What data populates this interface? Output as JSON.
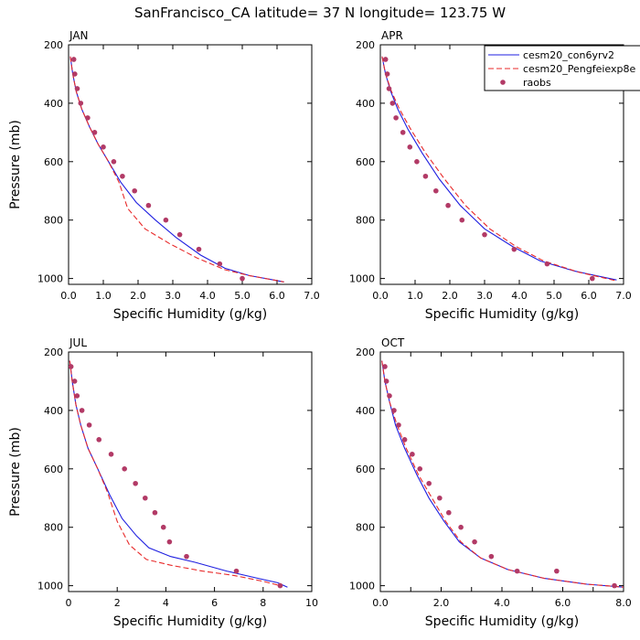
{
  "title": "SanFrancisco_CA  latitude= 37 N longitude= 123.75 W",
  "colors": {
    "model_a": "#1f1fe0",
    "model_b": "#e82a2a",
    "obs": "#b23a66"
  },
  "chart_data": [
    {
      "type": "line",
      "panel": "JAN",
      "title": "JAN",
      "xlabel": "Specific Humidity (g/kg)",
      "ylabel": "Pressure (mb)",
      "xlim": [
        0,
        7
      ],
      "ylim": [
        200,
        1020
      ],
      "y_inverted": true,
      "xticks": [
        0,
        1,
        2,
        3,
        4,
        5,
        6,
        7
      ],
      "xtick_labels": [
        "0.0",
        "1.0",
        "2.0",
        "3.0",
        "4.0",
        "5.0",
        "6.0",
        "7.0"
      ],
      "yticks": [
        200,
        400,
        600,
        800,
        1000
      ],
      "ytick_labels": [
        "200",
        "400",
        "600",
        "800",
        "1000"
      ],
      "series": [
        {
          "name": "cesm20_con6yrv2",
          "style": "solid",
          "x": [
            0.05,
            0.12,
            0.22,
            0.38,
            0.6,
            0.85,
            1.15,
            1.5,
            1.95,
            2.5,
            3.1,
            3.8,
            4.5,
            5.2,
            5.9,
            6.2
          ],
          "y": [
            240,
            300,
            360,
            420,
            480,
            540,
            600,
            670,
            740,
            800,
            860,
            920,
            965,
            990,
            1005,
            1012
          ]
        },
        {
          "name": "cesm20_Pengfeiexp8e",
          "style": "dashed",
          "x": [
            0.05,
            0.12,
            0.22,
            0.38,
            0.6,
            0.85,
            1.15,
            1.45,
            1.7,
            2.2,
            2.9,
            3.7,
            4.5,
            5.2,
            5.9,
            6.2
          ],
          "y": [
            240,
            300,
            360,
            420,
            480,
            540,
            600,
            670,
            760,
            830,
            880,
            930,
            970,
            990,
            1005,
            1012
          ]
        },
        {
          "name": "raobs",
          "style": "markers",
          "x": [
            0.15,
            0.18,
            0.25,
            0.35,
            0.55,
            0.75,
            1.0,
            1.3,
            1.55,
            1.9,
            2.3,
            2.8,
            3.2,
            3.75,
            4.35,
            5.0
          ],
          "y": [
            250,
            300,
            350,
            400,
            450,
            500,
            550,
            600,
            650,
            700,
            750,
            800,
            850,
            900,
            950,
            1000
          ]
        }
      ]
    },
    {
      "type": "line",
      "panel": "APR",
      "title": "APR",
      "xlabel": "Specific Humidity (g/kg)",
      "ylabel": "",
      "xlim": [
        0,
        7
      ],
      "ylim": [
        200,
        1020
      ],
      "y_inverted": true,
      "xticks": [
        0,
        1,
        2,
        3,
        4,
        5,
        6,
        7
      ],
      "xtick_labels": [
        "0.0",
        "1.0",
        "2.0",
        "3.0",
        "4.0",
        "5.0",
        "6.0",
        "7.0"
      ],
      "yticks": [
        200,
        400,
        600,
        800,
        1000
      ],
      "ytick_labels": [
        "200",
        "400",
        "600",
        "800",
        "1000"
      ],
      "series": [
        {
          "name": "cesm20_con6yrv2",
          "style": "solid",
          "x": [
            0.05,
            0.15,
            0.3,
            0.5,
            0.8,
            1.2,
            1.7,
            2.3,
            3.0,
            3.8,
            4.6,
            5.6,
            6.8
          ],
          "y": [
            240,
            300,
            360,
            420,
            490,
            570,
            660,
            750,
            830,
            890,
            940,
            975,
            1005
          ]
        },
        {
          "name": "cesm20_Pengfeiexp8e",
          "style": "dashed",
          "x": [
            0.05,
            0.15,
            0.32,
            0.55,
            0.88,
            1.3,
            1.85,
            2.45,
            3.15,
            3.9,
            4.7,
            5.7,
            6.8
          ],
          "y": [
            240,
            300,
            360,
            420,
            490,
            570,
            660,
            750,
            830,
            890,
            940,
            978,
            1008
          ]
        },
        {
          "name": "raobs",
          "style": "markers",
          "x": [
            0.15,
            0.2,
            0.25,
            0.35,
            0.45,
            0.65,
            0.85,
            1.05,
            1.3,
            1.6,
            1.95,
            2.35,
            3.0,
            3.85,
            4.8,
            6.1
          ],
          "y": [
            250,
            300,
            350,
            400,
            450,
            500,
            550,
            600,
            650,
            700,
            750,
            800,
            850,
            900,
            950,
            1000
          ]
        }
      ]
    },
    {
      "type": "line",
      "panel": "JUL",
      "title": "JUL",
      "xlabel": "Specific Humidity (g/kg)",
      "ylabel": "Pressure (mb)",
      "xlim": [
        0,
        10
      ],
      "ylim": [
        200,
        1020
      ],
      "y_inverted": true,
      "xticks": [
        0,
        2,
        4,
        6,
        8,
        10
      ],
      "xtick_labels": [
        "0",
        "2",
        "4",
        "6",
        "8",
        "10"
      ],
      "yticks": [
        200,
        400,
        600,
        800,
        1000
      ],
      "ytick_labels": [
        "200",
        "400",
        "600",
        "800",
        "1000"
      ],
      "series": [
        {
          "name": "cesm20_con6yrv2",
          "style": "solid",
          "x": [
            0.05,
            0.15,
            0.3,
            0.5,
            0.8,
            1.2,
            1.7,
            2.2,
            2.8,
            3.3,
            4.2,
            5.2,
            6.5,
            7.8,
            8.6,
            9.0
          ],
          "y": [
            230,
            300,
            380,
            450,
            530,
            600,
            690,
            770,
            830,
            870,
            900,
            920,
            950,
            975,
            990,
            1005
          ]
        },
        {
          "name": "cesm20_Pengfeiexp8e",
          "style": "dashed",
          "x": [
            0.05,
            0.15,
            0.3,
            0.5,
            0.8,
            1.2,
            1.6,
            2.0,
            2.5,
            3.2,
            4.2,
            5.5,
            6.8,
            8.0,
            8.8
          ],
          "y": [
            230,
            300,
            380,
            450,
            530,
            600,
            680,
            780,
            860,
            910,
            930,
            950,
            965,
            985,
            1002
          ]
        },
        {
          "name": "raobs",
          "style": "markers",
          "x": [
            0.1,
            0.25,
            0.35,
            0.55,
            0.85,
            1.25,
            1.75,
            2.3,
            2.75,
            3.15,
            3.55,
            3.9,
            4.15,
            4.85,
            6.9,
            8.7
          ],
          "y": [
            250,
            300,
            350,
            400,
            450,
            500,
            550,
            600,
            650,
            700,
            750,
            800,
            850,
            900,
            950,
            1000
          ]
        }
      ]
    },
    {
      "type": "line",
      "panel": "OCT",
      "title": "OCT",
      "xlabel": "Specific Humidity (g/kg)",
      "ylabel": "",
      "xlim": [
        0,
        8
      ],
      "ylim": [
        200,
        1020
      ],
      "y_inverted": true,
      "xticks": [
        0,
        1,
        2,
        3,
        4,
        5,
        6,
        7,
        8
      ],
      "xtick_labels": [
        "0.0",
        "",
        "2.0",
        "",
        "4.0",
        "",
        "6.0",
        "",
        "8.0"
      ],
      "yticks": [
        200,
        400,
        600,
        800,
        1000
      ],
      "ytick_labels": [
        "200",
        "400",
        "600",
        "800",
        "1000"
      ],
      "series": [
        {
          "name": "cesm20_con6yrv2",
          "style": "solid",
          "x": [
            0.05,
            0.15,
            0.3,
            0.5,
            0.8,
            1.2,
            1.6,
            2.1,
            2.6,
            3.3,
            4.2,
            5.4,
            6.8,
            8.0
          ],
          "y": [
            230,
            300,
            370,
            450,
            530,
            620,
            700,
            780,
            850,
            905,
            945,
            975,
            995,
            1005
          ]
        },
        {
          "name": "cesm20_Pengfeiexp8e",
          "style": "dashed",
          "x": [
            0.05,
            0.15,
            0.3,
            0.55,
            0.85,
            1.25,
            1.7,
            2.15,
            2.65,
            3.3,
            4.2,
            5.4,
            6.8,
            8.0
          ],
          "y": [
            230,
            300,
            370,
            450,
            530,
            620,
            700,
            780,
            850,
            905,
            945,
            975,
            995,
            1005
          ]
        },
        {
          "name": "raobs",
          "style": "markers",
          "x": [
            0.15,
            0.2,
            0.3,
            0.45,
            0.6,
            0.8,
            1.05,
            1.3,
            1.6,
            1.95,
            2.25,
            2.65,
            3.1,
            3.65,
            4.5,
            5.8,
            7.7
          ],
          "y": [
            250,
            300,
            350,
            400,
            450,
            500,
            550,
            600,
            650,
            700,
            750,
            800,
            850,
            900,
            950,
            950,
            1000
          ]
        }
      ]
    }
  ],
  "legend": {
    "items": [
      {
        "label": "cesm20_con6yrv2",
        "style": "solid"
      },
      {
        "label": "cesm20_Pengfeiexp8e",
        "style": "dashed"
      },
      {
        "label": "raobs",
        "style": "markers"
      }
    ]
  }
}
